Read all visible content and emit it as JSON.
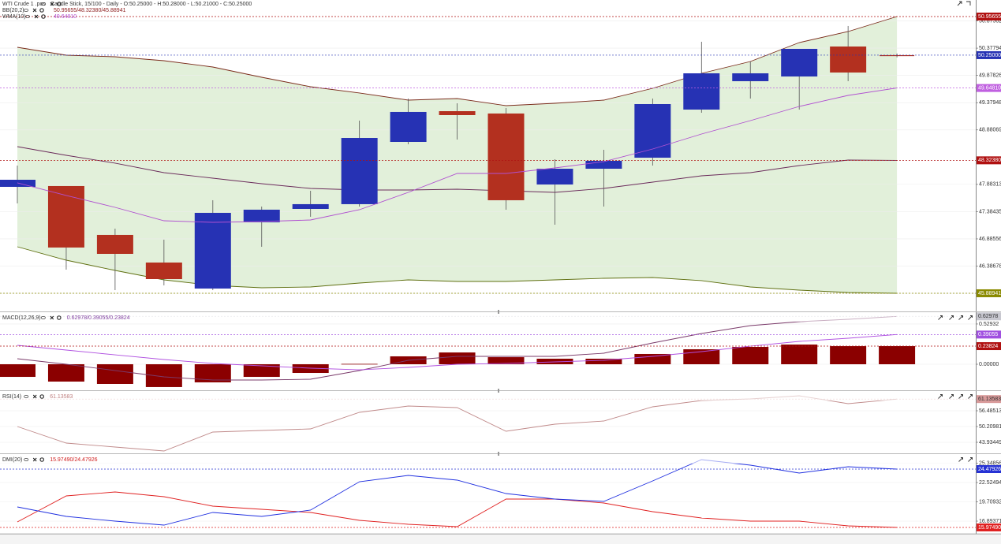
{
  "chart_data": [
    {
      "type": "candlestick",
      "title": "WTI Crude 1 .pos",
      "subtitle": "Candle Stick, 15/100 - Daily - O:50.25000 - H:50.28000 - L:50.21000 - C:50.25000",
      "open": [
        47.838,
        47.853,
        46.958,
        46.452,
        45.976,
        47.189,
        47.434,
        47.521,
        48.661,
        49.224,
        49.181,
        47.881,
        48.17,
        48.372,
        49.253,
        49.773,
        49.859,
        50.408,
        50.25
      ],
      "high": [
        48.228,
        47.853,
        47.073,
        46.871,
        47.593,
        47.477,
        47.766,
        49.051,
        49.455,
        49.369,
        49.282,
        48.344,
        48.517,
        49.455,
        50.495,
        50.134,
        50.365,
        50.784,
        50.28
      ],
      "low": [
        47.535,
        46.323,
        45.947,
        46.034,
        45.947,
        46.741,
        47.29,
        47.477,
        48.618,
        48.705,
        47.42,
        47.145,
        47.477,
        48.228,
        49.195,
        49.455,
        49.253,
        49.773,
        50.21
      ],
      "close": [
        47.968,
        46.727,
        46.611,
        46.149,
        47.362,
        47.42,
        47.521,
        48.733,
        49.21,
        49.152,
        47.593,
        48.17,
        48.315,
        49.354,
        49.917,
        49.917,
        50.365,
        49.932,
        50.25
      ],
      "up_color": "#2632b4",
      "down_color": "#b3301f",
      "ylim": [
        45.557,
        51.2597
      ],
      "yticks": [
        50.87502,
        50.37794,
        49.87826,
        49.37948,
        48.88069,
        47.88313,
        47.38435,
        46.88556,
        46.38678,
        {
          "value": 45.888,
          "label": "45.88800"
        }
      ],
      "grid": true,
      "bands": {
        "name": "BB(20,2)",
        "values_label": "50.95655/48.32380/45.88941",
        "upper": [
          50.394,
          50.249,
          50.22,
          50.148,
          50.033,
          49.845,
          49.672,
          49.557,
          49.426,
          49.455,
          49.325,
          49.369,
          49.426,
          49.643,
          49.917,
          50.134,
          50.48,
          50.682,
          50.95655
        ],
        "middle": [
          48.575,
          48.416,
          48.272,
          48.098,
          47.997,
          47.896,
          47.809,
          47.781,
          47.781,
          47.795,
          47.766,
          47.737,
          47.809,
          47.925,
          48.04,
          48.098,
          48.228,
          48.329,
          48.3238
        ],
        "lower": [
          46.741,
          46.496,
          46.308,
          46.135,
          46.034,
          45.99,
          46.005,
          46.077,
          46.135,
          46.106,
          46.106,
          46.135,
          46.164,
          46.178,
          46.121,
          46.005,
          45.947,
          45.904,
          45.88941
        ],
        "upper_color": "#7a2a1a",
        "middle_color": "#6a2a5a",
        "lower_color": "#5f6f10",
        "fill": "#e2f0da",
        "label_color": "#8b1a1a"
      },
      "overlay": {
        "name": "WMA(10)",
        "values_label": "49.64810",
        "color": "#b050d0",
        "values": [
          47.911,
          47.68,
          47.463,
          47.218,
          47.189,
          47.203,
          47.232,
          47.42,
          47.737,
          48.084,
          48.084,
          48.185,
          48.3,
          48.531,
          48.805,
          49.051,
          49.311,
          49.513,
          49.6481
        ]
      },
      "markers": [
        {
          "value": 50.95655,
          "color": "#b01010"
        },
        {
          "value": 50.25,
          "label": "50.25000",
          "color": "#2632b4"
        },
        {
          "value": 49.6481,
          "label": "49.64810",
          "color": "#c060e0"
        },
        {
          "value": 48.3238,
          "label": "48.32380",
          "color": "#b01010"
        },
        {
          "value": 45.88941,
          "color": "#8a8a00"
        }
      ]
    },
    {
      "type": "macd",
      "title": "MACD(12,26,9)",
      "values_label": "0.62978/0.39055/0.23824",
      "label_color": "#8040a0",
      "ylim": [
        -0.342,
        0.674
      ],
      "yticks": [
        0.52932,
        {
          "value": 0,
          "label": "0.00000"
        }
      ],
      "grid": true,
      "histogram": [
        -0.166,
        -0.228,
        -0.259,
        -0.3,
        -0.238,
        -0.166,
        -0.114,
        0.005,
        0.104,
        0.155,
        0.093,
        0.073,
        0.073,
        0.135,
        0.197,
        0.228,
        0.259,
        0.238,
        0.23824
      ],
      "histogram_color": "#8b0000",
      "series": [
        {
          "color": "#7a3a6a",
          "values": [
            0.073,
            0,
            -0.083,
            -0.166,
            -0.207,
            -0.207,
            -0.197,
            -0.083,
            0.052,
            0.104,
            0.104,
            0.104,
            0.145,
            0.28,
            0.404,
            0.508,
            0.56,
            0.591,
            0.62978
          ]
        },
        {
          "color": "#b050e0",
          "values": [
            0.249,
            0.187,
            0.124,
            0.062,
            0.01,
            -0.021,
            -0.052,
            -0.073,
            -0.041,
            0,
            0.01,
            0.031,
            0.052,
            0.104,
            0.166,
            0.238,
            0.301,
            0.342,
            0.39055
          ]
        }
      ],
      "markers": [
        {
          "value": 0.62978,
          "color": "#c8c8d0"
        },
        {
          "value": 0.39055,
          "color": "#a050e0"
        },
        {
          "value": 0.23824,
          "color": "#b01010"
        }
      ]
    },
    {
      "type": "line",
      "title": "RSI(14)",
      "values_label": "61.13583",
      "label_color": "#c08080",
      "ylim": [
        39.54,
        64.02
      ],
      "yticks": [
        56.48513,
        50.20981,
        43.93449
      ],
      "grid": true,
      "series": [
        {
          "color": "#c08a8a",
          "values": [
            50.21,
            43.62,
            42.05,
            40.48,
            48.01,
            48.64,
            49.27,
            55.86,
            58.37,
            57.74,
            48.33,
            51.15,
            52.41,
            58.05,
            60.56,
            61.19,
            62.45,
            59.31,
            61.13583
          ]
        }
      ],
      "markers": [
        {
          "value": 61.13583,
          "color": "#d89a9a"
        }
      ]
    },
    {
      "type": "line",
      "title": "DMI(20)",
      "values_label": "15.97490/24.47926",
      "label_color": "#d02020",
      "ylim": [
        15.054,
        26.548
      ],
      "yticks": [
        25.34856,
        22.52494,
        19.70932,
        16.89371
      ],
      "grid": true,
      "series": [
        {
          "color": "#e02020",
          "values": [
            16.78,
            20.57,
            21.15,
            20.46,
            19.08,
            18.62,
            18.16,
            17.01,
            16.43,
            16.09,
            20.11,
            20.11,
            19.54,
            18.27,
            17.35,
            16.89,
            16.89,
            16.2,
            15.9749
          ]
        },
        {
          "color": "#2030e0",
          "values": [
            18.96,
            17.58,
            16.89,
            16.32,
            18.16,
            17.58,
            18.5,
            22.64,
            23.56,
            22.87,
            20.92,
            20.11,
            19.77,
            22.76,
            25.86,
            25.05,
            23.9,
            24.82,
            24.47926
          ]
        }
      ],
      "markers": [
        {
          "value": 24.47926,
          "color": "#2632d4"
        },
        {
          "value": 15.9749,
          "label": "15.97490",
          "color": "#e02020"
        }
      ]
    }
  ]
}
